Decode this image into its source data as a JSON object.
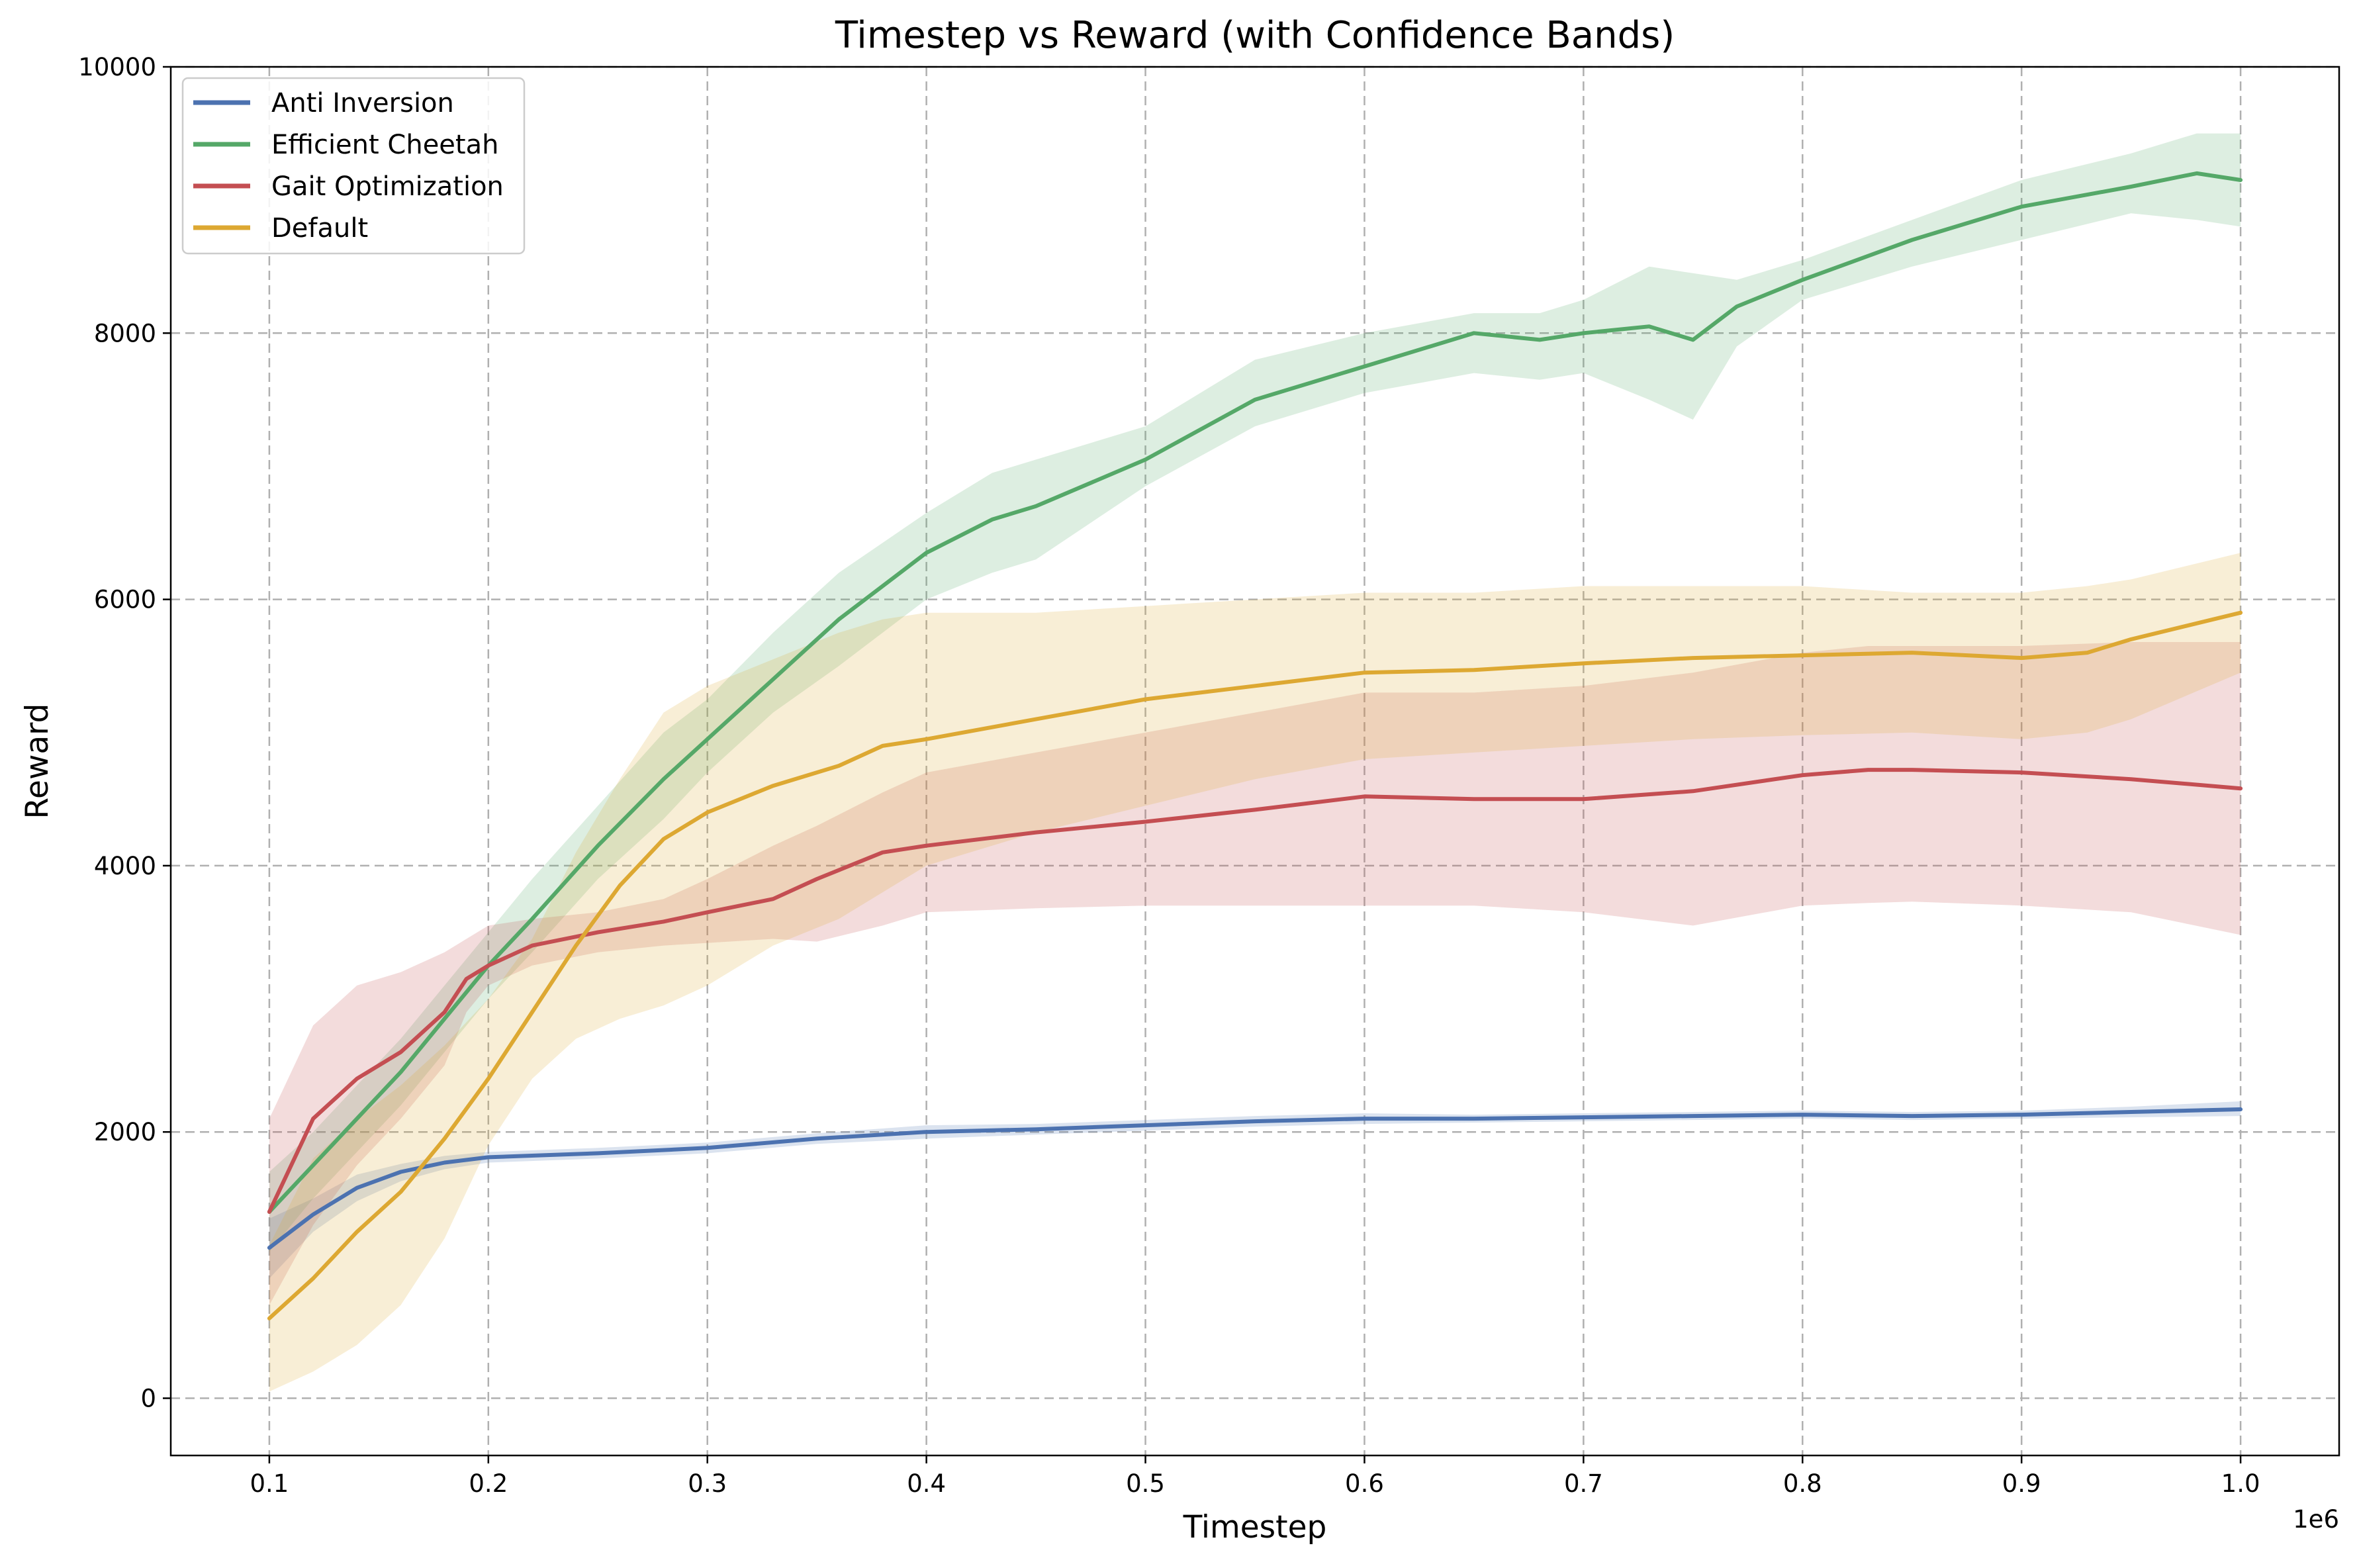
{
  "chart_data": {
    "type": "line",
    "title": "Timestep vs Reward (with Confidence Bands)",
    "xlabel": "Timestep",
    "ylabel": "Reward",
    "x_offset_label": "1e6",
    "xlim": [
      0.055,
      1.045
    ],
    "ylim": [
      -430,
      10000
    ],
    "x_ticks": [
      0.1,
      0.2,
      0.3,
      0.4,
      0.5,
      0.6,
      0.7,
      0.8,
      0.9,
      1.0
    ],
    "x_tick_labels": [
      "0.1",
      "0.2",
      "0.3",
      "0.4",
      "0.5",
      "0.6",
      "0.7",
      "0.8",
      "0.9",
      "1.0"
    ],
    "y_ticks": [
      0,
      2000,
      4000,
      6000,
      8000,
      10000
    ],
    "y_tick_labels": [
      "0",
      "2000",
      "4000",
      "6000",
      "8000",
      "10000"
    ],
    "grid": true,
    "legend_position": "top-left",
    "x_units": "timestep (x1e6)",
    "series": [
      {
        "name": "Anti Inversion",
        "color": "#4c72b0",
        "x": [
          0.1,
          0.12,
          0.14,
          0.16,
          0.18,
          0.2,
          0.25,
          0.3,
          0.35,
          0.4,
          0.45,
          0.5,
          0.55,
          0.6,
          0.65,
          0.7,
          0.75,
          0.8,
          0.85,
          0.9,
          0.95,
          1.0
        ],
        "mean": [
          1130,
          1380,
          1580,
          1700,
          1770,
          1810,
          1840,
          1880,
          1950,
          2000,
          2020,
          2050,
          2080,
          2100,
          2100,
          2110,
          2120,
          2130,
          2120,
          2130,
          2150,
          2170
        ],
        "lower": [
          900,
          1250,
          1480,
          1630,
          1720,
          1770,
          1800,
          1840,
          1910,
          1950,
          1980,
          2010,
          2040,
          2060,
          2070,
          2080,
          2090,
          2100,
          2090,
          2100,
          2110,
          2120
        ],
        "upper": [
          1350,
          1500,
          1680,
          1760,
          1820,
          1850,
          1880,
          1920,
          1990,
          2050,
          2060,
          2090,
          2120,
          2140,
          2130,
          2140,
          2150,
          2160,
          2150,
          2160,
          2190,
          2230
        ]
      },
      {
        "name": "Efficient Cheetah",
        "color": "#55a868",
        "x": [
          0.1,
          0.12,
          0.14,
          0.16,
          0.18,
          0.2,
          0.22,
          0.25,
          0.28,
          0.3,
          0.33,
          0.36,
          0.4,
          0.43,
          0.45,
          0.5,
          0.55,
          0.6,
          0.65,
          0.68,
          0.7,
          0.73,
          0.75,
          0.77,
          0.8,
          0.85,
          0.9,
          0.95,
          0.98,
          1.0
        ],
        "mean": [
          1400,
          1750,
          2100,
          2450,
          2850,
          3250,
          3600,
          4150,
          4650,
          4950,
          5400,
          5850,
          6350,
          6600,
          6700,
          7050,
          7500,
          7750,
          8000,
          7950,
          8000,
          8050,
          7950,
          8200,
          8400,
          8700,
          8950,
          9100,
          9200,
          9150
        ],
        "lower": [
          1100,
          1500,
          1850,
          2200,
          2600,
          3000,
          3350,
          3900,
          4350,
          4700,
          5150,
          5500,
          6000,
          6200,
          6300,
          6850,
          7300,
          7550,
          7700,
          7650,
          7700,
          7500,
          7350,
          7900,
          8250,
          8500,
          8700,
          8900,
          8850,
          8800
        ],
        "upper": [
          1700,
          2000,
          2350,
          2700,
          3100,
          3500,
          3900,
          4450,
          5000,
          5250,
          5750,
          6200,
          6650,
          6950,
          7050,
          7300,
          7800,
          8000,
          8150,
          8150,
          8250,
          8500,
          8450,
          8400,
          8550,
          8850,
          9150,
          9350,
          9500,
          9500
        ]
      },
      {
        "name": "Gait Optimization",
        "color": "#c44e52",
        "x": [
          0.1,
          0.12,
          0.14,
          0.16,
          0.18,
          0.19,
          0.2,
          0.22,
          0.25,
          0.28,
          0.3,
          0.33,
          0.35,
          0.38,
          0.4,
          0.45,
          0.5,
          0.55,
          0.6,
          0.65,
          0.7,
          0.75,
          0.8,
          0.83,
          0.85,
          0.9,
          0.95,
          1.0
        ],
        "mean": [
          1400,
          2100,
          2400,
          2600,
          2900,
          3150,
          3250,
          3400,
          3500,
          3580,
          3650,
          3750,
          3900,
          4100,
          4150,
          4250,
          4330,
          4420,
          4520,
          4500,
          4500,
          4560,
          4680,
          4720,
          4720,
          4700,
          4650,
          4580
        ],
        "lower": [
          700,
          1300,
          1750,
          2100,
          2500,
          2900,
          3100,
          3250,
          3350,
          3400,
          3420,
          3450,
          3430,
          3550,
          3650,
          3680,
          3700,
          3700,
          3700,
          3700,
          3650,
          3550,
          3700,
          3720,
          3730,
          3700,
          3650,
          3480
        ],
        "upper": [
          2100,
          2800,
          3100,
          3200,
          3350,
          3450,
          3550,
          3600,
          3650,
          3750,
          3900,
          4150,
          4300,
          4550,
          4700,
          4850,
          5000,
          5150,
          5300,
          5300,
          5350,
          5450,
          5600,
          5650,
          5650,
          5650,
          5680,
          5680
        ]
      },
      {
        "name": "Default",
        "color": "#dda832",
        "x": [
          0.1,
          0.12,
          0.14,
          0.16,
          0.18,
          0.2,
          0.22,
          0.24,
          0.26,
          0.28,
          0.3,
          0.33,
          0.36,
          0.38,
          0.4,
          0.45,
          0.5,
          0.55,
          0.6,
          0.65,
          0.7,
          0.75,
          0.8,
          0.85,
          0.9,
          0.93,
          0.95,
          1.0
        ],
        "mean": [
          600,
          900,
          1250,
          1550,
          1950,
          2400,
          2900,
          3400,
          3850,
          4200,
          4400,
          4600,
          4750,
          4900,
          4950,
          5100,
          5250,
          5350,
          5450,
          5470,
          5520,
          5560,
          5580,
          5600,
          5560,
          5600,
          5700,
          5900
        ],
        "lower": [
          50,
          200,
          400,
          700,
          1200,
          1900,
          2400,
          2700,
          2850,
          2950,
          3100,
          3400,
          3600,
          3800,
          4000,
          4250,
          4450,
          4650,
          4800,
          4850,
          4900,
          4950,
          4980,
          5000,
          4950,
          5000,
          5100,
          5450
        ],
        "upper": [
          1150,
          1800,
          2100,
          2350,
          2650,
          3000,
          3450,
          4100,
          4650,
          5150,
          5350,
          5550,
          5750,
          5850,
          5900,
          5900,
          5950,
          6000,
          6050,
          6050,
          6100,
          6100,
          6100,
          6050,
          6050,
          6100,
          6150,
          6350
        ]
      }
    ]
  }
}
